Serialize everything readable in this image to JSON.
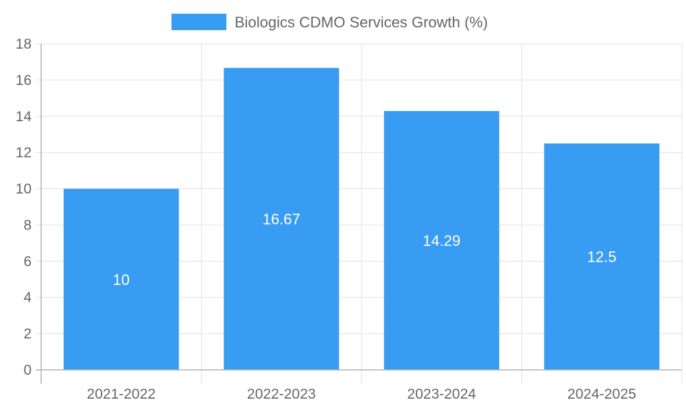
{
  "chart_data": {
    "type": "bar",
    "categories": [
      "2021-2022",
      "2022-2023",
      "2023-2024",
      "2024-2025"
    ],
    "series": [
      {
        "name": "Biologics CDMO Services Growth (%)",
        "values": [
          10,
          16.67,
          14.29,
          12.5
        ]
      }
    ],
    "data_labels": [
      "10",
      "16.67",
      "14.29",
      "12.5"
    ],
    "yticks": [
      "0",
      "2",
      "4",
      "6",
      "8",
      "10",
      "12",
      "14",
      "16",
      "18"
    ],
    "ylim": [
      0,
      18
    ],
    "grid": true,
    "legend": "top-center",
    "colors": {
      "bar": "#389cf2",
      "grid": "#e0e0e0",
      "axis": "#b0b0b0"
    }
  }
}
